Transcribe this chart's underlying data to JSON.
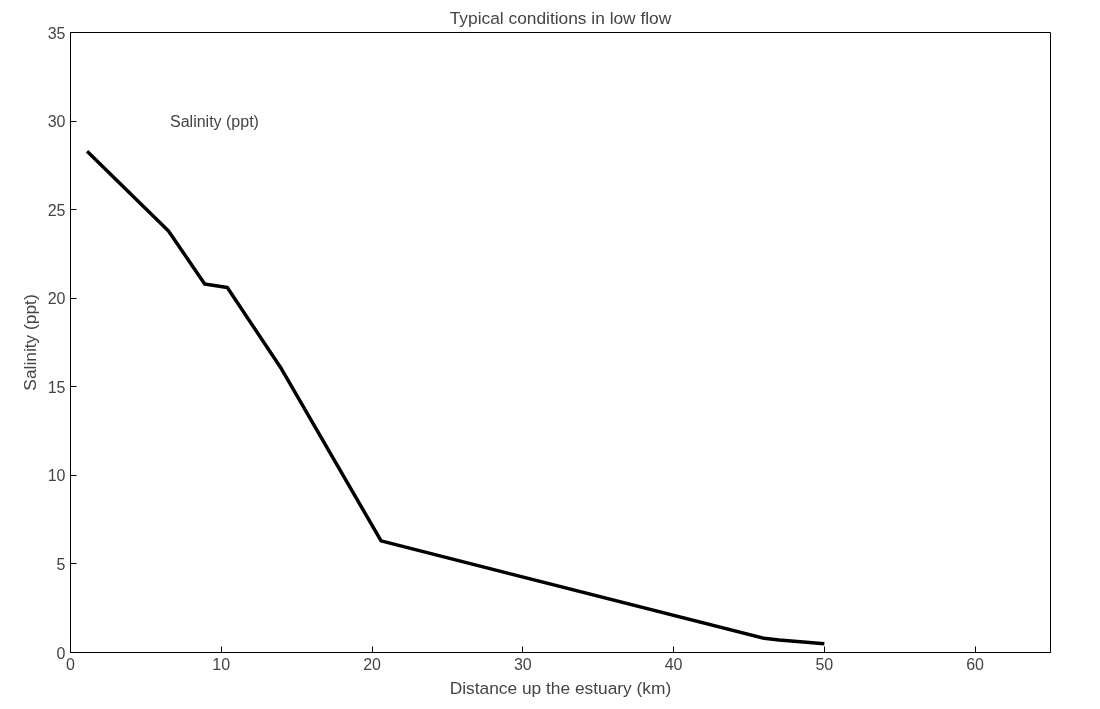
{
  "chart_data": {
    "type": "line",
    "title": "Typical conditions in low flow",
    "xlabel": "Distance up the estuary (km)",
    "ylabel": "Salinity (ppt)",
    "x": [
      1.1,
      6.5,
      8.9,
      10.4,
      14,
      20.6,
      46,
      47,
      50
    ],
    "series": [
      {
        "name": "Salinity (ppt)",
        "color": "#000000",
        "values": [
          28.3,
          23.8,
          20.8,
          20.6,
          16,
          6.3,
          0.8,
          0.7,
          0.5
        ]
      }
    ],
    "xlim": [
      0,
      65
    ],
    "ylim": [
      0,
      35
    ],
    "xticks": [
      0,
      10,
      20,
      30,
      40,
      50,
      60
    ],
    "yticks": [
      0,
      5,
      10,
      15,
      20,
      25,
      30,
      35
    ],
    "grid": false,
    "legend": false,
    "marker": "none",
    "line_style": "solid"
  }
}
